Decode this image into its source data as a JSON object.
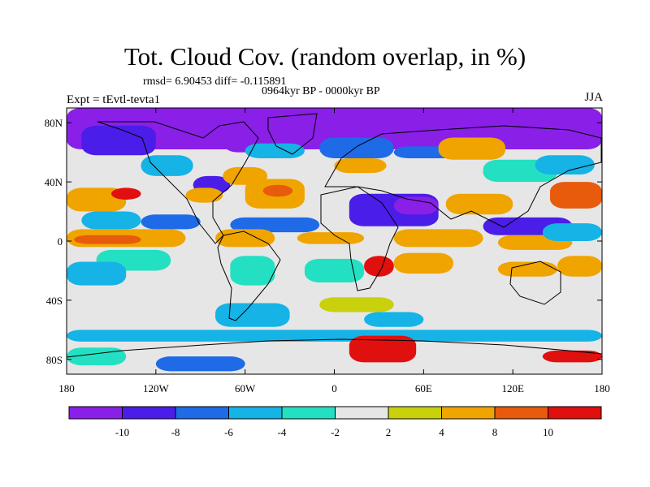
{
  "title": "Tot. Cloud Cov. (random overlap, in %)",
  "stats": "rmsd= 6.90453 diff= -0.115891",
  "period": "0964kyr BP - 0000kyr BP",
  "experiment": "Expt = tEvtl-tevta1",
  "season": "JJA",
  "chart_data": {
    "type": "heatmap",
    "variable": "Tot. Cloud Cov. (random overlap, in %)",
    "xlim": [
      -180,
      180
    ],
    "ylim": [
      -90,
      90
    ],
    "x_ticks": [
      {
        "value": -180,
        "label": "180"
      },
      {
        "value": -120,
        "label": "120W"
      },
      {
        "value": -60,
        "label": "60W"
      },
      {
        "value": 0,
        "label": "0"
      },
      {
        "value": 60,
        "label": "60E"
      },
      {
        "value": 120,
        "label": "120E"
      },
      {
        "value": 180,
        "label": "180"
      }
    ],
    "y_ticks": [
      {
        "value": 80,
        "label": "80N"
      },
      {
        "value": 40,
        "label": "40N"
      },
      {
        "value": 0,
        "label": "0"
      },
      {
        "value": -40,
        "label": "40S"
      },
      {
        "value": -80,
        "label": "80S"
      }
    ],
    "colorbar": {
      "bins": [
        {
          "min": null,
          "max": -10,
          "color": "#8a1fe8"
        },
        {
          "min": -10,
          "max": -8,
          "color": "#4a1de8"
        },
        {
          "min": -8,
          "max": -6,
          "color": "#1f6ae6"
        },
        {
          "min": -6,
          "max": -4,
          "color": "#15b3e6"
        },
        {
          "min": -4,
          "max": -2,
          "color": "#24e0c2"
        },
        {
          "min": -2,
          "max": 2,
          "color": "#e6e6e6"
        },
        {
          "min": 2,
          "max": 4,
          "color": "#c8d10c"
        },
        {
          "min": 4,
          "max": 8,
          "color": "#f0a400"
        },
        {
          "min": 8,
          "max": 10,
          "color": "#e85a0c"
        },
        {
          "min": 10,
          "max": null,
          "color": "#e0100e"
        }
      ],
      "labels": [
        "-10",
        "-8",
        "-6",
        "-4",
        "-2",
        "2",
        "4",
        "8",
        "10"
      ]
    },
    "regions": [
      {
        "lon": [
          -180,
          180
        ],
        "lat": [
          62,
          90
        ],
        "bin": 0
      },
      {
        "lon": [
          -75,
          -35
        ],
        "lat": [
          60,
          84
        ],
        "bin": 0
      },
      {
        "lon": [
          -170,
          -120
        ],
        "lat": [
          58,
          78
        ],
        "bin": 1
      },
      {
        "lon": [
          -60,
          -20
        ],
        "lat": [
          56,
          66
        ],
        "bin": 3
      },
      {
        "lon": [
          -10,
          40
        ],
        "lat": [
          56,
          70
        ],
        "bin": 2
      },
      {
        "lon": [
          40,
          100
        ],
        "lat": [
          56,
          64
        ],
        "bin": 2
      },
      {
        "lon": [
          -130,
          -95
        ],
        "lat": [
          44,
          58
        ],
        "bin": 3
      },
      {
        "lon": [
          -95,
          -70
        ],
        "lat": [
          32,
          44
        ],
        "bin": 1
      },
      {
        "lon": [
          -75,
          -45
        ],
        "lat": [
          38,
          50
        ],
        "bin": 7
      },
      {
        "lon": [
          0,
          35
        ],
        "lat": [
          46,
          56
        ],
        "bin": 7
      },
      {
        "lon": [
          70,
          115
        ],
        "lat": [
          55,
          70
        ],
        "bin": 7
      },
      {
        "lon": [
          100,
          150
        ],
        "lat": [
          40,
          55
        ],
        "bin": 4
      },
      {
        "lon": [
          135,
          175
        ],
        "lat": [
          45,
          58
        ],
        "bin": 3
      },
      {
        "lon": [
          -180,
          -140
        ],
        "lat": [
          20,
          36
        ],
        "bin": 7
      },
      {
        "lon": [
          -150,
          -130
        ],
        "lat": [
          28,
          36
        ],
        "bin": 9
      },
      {
        "lon": [
          -100,
          -75
        ],
        "lat": [
          26,
          36
        ],
        "bin": 7
      },
      {
        "lon": [
          -60,
          -20
        ],
        "lat": [
          22,
          42
        ],
        "bin": 7
      },
      {
        "lon": [
          -48,
          -28
        ],
        "lat": [
          30,
          38
        ],
        "bin": 8
      },
      {
        "lon": [
          -170,
          -130
        ],
        "lat": [
          8,
          20
        ],
        "bin": 3
      },
      {
        "lon": [
          -130,
          -90
        ],
        "lat": [
          8,
          18
        ],
        "bin": 2
      },
      {
        "lon": [
          -70,
          -10
        ],
        "lat": [
          6,
          16
        ],
        "bin": 2
      },
      {
        "lon": [
          10,
          70
        ],
        "lat": [
          10,
          32
        ],
        "bin": 1
      },
      {
        "lon": [
          40,
          70
        ],
        "lat": [
          18,
          30
        ],
        "bin": 0
      },
      {
        "lon": [
          75,
          120
        ],
        "lat": [
          18,
          32
        ],
        "bin": 7
      },
      {
        "lon": [
          145,
          180
        ],
        "lat": [
          22,
          40
        ],
        "bin": 8
      },
      {
        "lon": [
          -180,
          -100
        ],
        "lat": [
          -4,
          8
        ],
        "bin": 7
      },
      {
        "lon": [
          -175,
          -130
        ],
        "lat": [
          -2,
          4
        ],
        "bin": 8
      },
      {
        "lon": [
          -80,
          -40
        ],
        "lat": [
          -4,
          8
        ],
        "bin": 7
      },
      {
        "lon": [
          -25,
          20
        ],
        "lat": [
          -2,
          6
        ],
        "bin": 7
      },
      {
        "lon": [
          40,
          100
        ],
        "lat": [
          -4,
          8
        ],
        "bin": 7
      },
      {
        "lon": [
          100,
          160
        ],
        "lat": [
          4,
          16
        ],
        "bin": 1
      },
      {
        "lon": [
          110,
          160
        ],
        "lat": [
          -6,
          4
        ],
        "bin": 7
      },
      {
        "lon": [
          140,
          180
        ],
        "lat": [
          0,
          12
        ],
        "bin": 3
      },
      {
        "lon": [
          20,
          40
        ],
        "lat": [
          -24,
          -10
        ],
        "bin": 9
      },
      {
        "lon": [
          40,
          80
        ],
        "lat": [
          -22,
          -8
        ],
        "bin": 7
      },
      {
        "lon": [
          110,
          150
        ],
        "lat": [
          -24,
          -14
        ],
        "bin": 7
      },
      {
        "lon": [
          150,
          180
        ],
        "lat": [
          -24,
          -10
        ],
        "bin": 7
      },
      {
        "lon": [
          -160,
          -110
        ],
        "lat": [
          -20,
          -6
        ],
        "bin": 4
      },
      {
        "lon": [
          -180,
          -140
        ],
        "lat": [
          -30,
          -14
        ],
        "bin": 3
      },
      {
        "lon": [
          -70,
          -40
        ],
        "lat": [
          -30,
          -10
        ],
        "bin": 4
      },
      {
        "lon": [
          -20,
          20
        ],
        "lat": [
          -28,
          -12
        ],
        "bin": 4
      },
      {
        "lon": [
          -10,
          40
        ],
        "lat": [
          -48,
          -38
        ],
        "bin": 6
      },
      {
        "lon": [
          -80,
          -30
        ],
        "lat": [
          -58,
          -42
        ],
        "bin": 3
      },
      {
        "lon": [
          20,
          60
        ],
        "lat": [
          -58,
          -48
        ],
        "bin": 3
      },
      {
        "lon": [
          -180,
          180
        ],
        "lat": [
          -68,
          -60
        ],
        "bin": 3
      },
      {
        "lon": [
          10,
          55
        ],
        "lat": [
          -82,
          -64
        ],
        "bin": 9
      },
      {
        "lon": [
          -180,
          -140
        ],
        "lat": [
          -84,
          -72
        ],
        "bin": 4
      },
      {
        "lon": [
          -120,
          -60
        ],
        "lat": [
          -88,
          -78
        ],
        "bin": 2
      },
      {
        "lon": [
          140,
          180
        ],
        "lat": [
          -82,
          -74
        ],
        "bin": 9
      }
    ]
  }
}
